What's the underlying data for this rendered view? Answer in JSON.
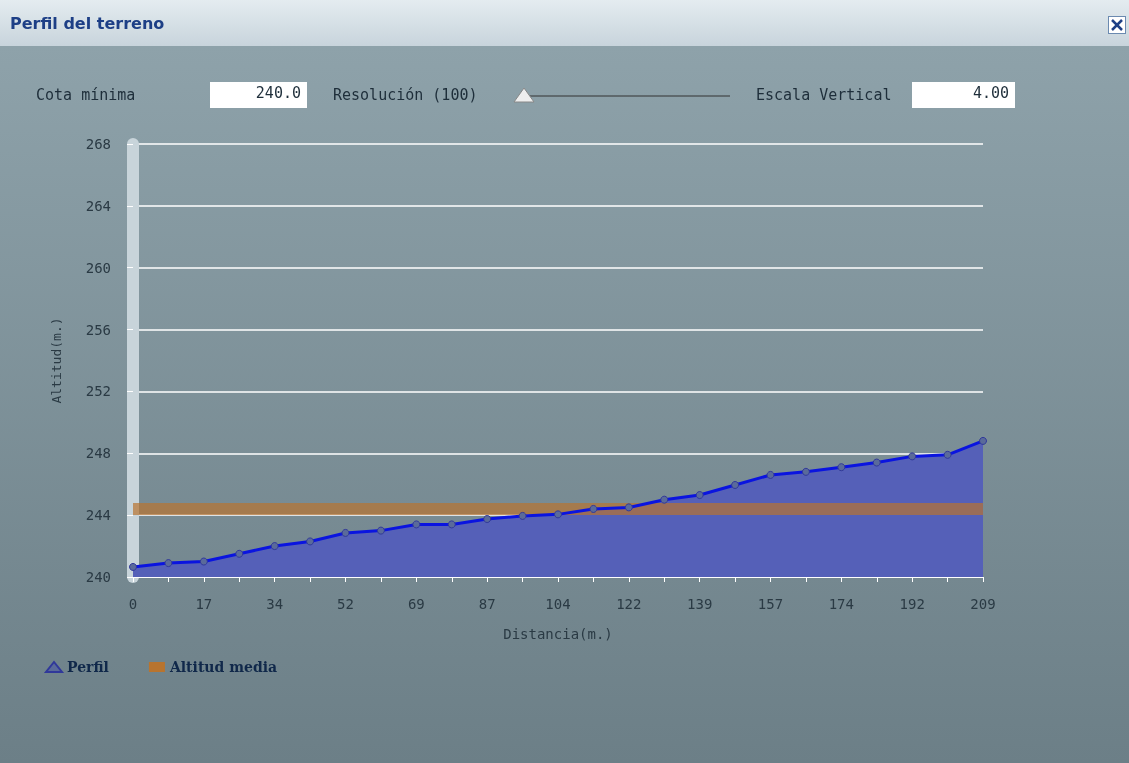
{
  "chart_data": {
    "type": "area",
    "title": "Perfil del terreno",
    "xlabel": "Distancia(m.)",
    "ylabel": "Altitud(m.)",
    "annotations": [
      "Cota mínima",
      "240.0",
      "Resolución (100)",
      "Escala Vertical",
      "4.00"
    ],
    "categories": [
      "0",
      null,
      "17",
      null,
      "34",
      null,
      "52",
      null,
      "69",
      null,
      "87",
      null,
      "104",
      null,
      "122",
      null,
      "139",
      null,
      "157",
      null,
      "174",
      null,
      "192",
      null,
      "209"
    ],
    "series": [
      {
        "name": "Perfil",
        "marker": "circle",
        "color": "#0a14e0",
        "values": [
          240.65,
          240.9,
          241.0,
          241.5,
          242.0,
          242.3,
          242.85,
          243.0,
          243.4,
          243.4,
          243.75,
          243.95,
          244.05,
          244.4,
          244.5,
          245.0,
          245.3,
          245.95,
          246.6,
          246.8,
          247.1,
          247.4,
          247.8,
          247.9,
          248.8
        ]
      },
      {
        "name": "Altitud media",
        "type": "line",
        "marker": "none",
        "color": "#b8742f",
        "values": [
          244.4,
          244.4,
          244.4,
          244.4,
          244.4,
          244.4,
          244.4,
          244.4,
          244.4,
          244.4,
          244.4,
          244.4,
          244.4,
          244.4,
          244.4,
          244.4,
          244.4,
          244.4,
          244.4,
          244.4,
          244.4,
          244.4,
          244.4,
          244.4,
          244.4
        ]
      }
    ],
    "ylim": [
      240,
      268
    ],
    "yticks": [
      240,
      244,
      248,
      252,
      256,
      260,
      264,
      268
    ],
    "grid": "y",
    "legend": "bottom left"
  }
}
